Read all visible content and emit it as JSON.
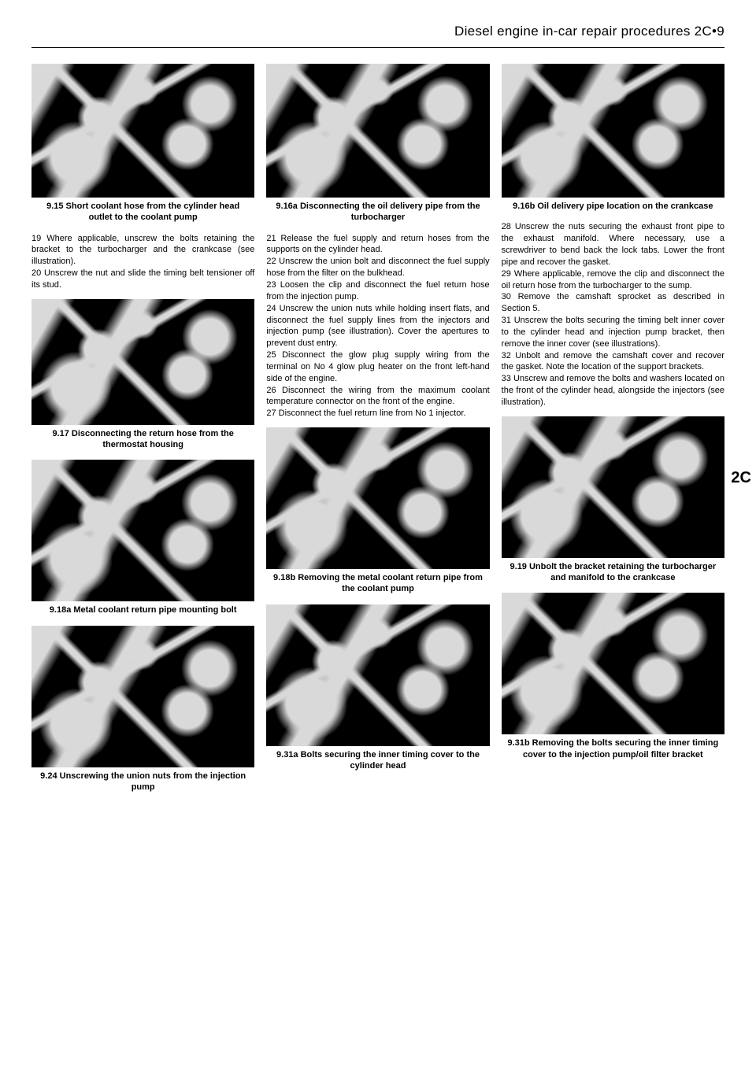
{
  "page": {
    "header": "Diesel engine in-car repair procedures  2C•9",
    "side_tab": "2C"
  },
  "figures": {
    "f9_15": "9.15  Short coolant hose from the cylinder head outlet to the coolant pump",
    "f9_16a": "9.16a  Disconnecting the oil delivery pipe from the turbocharger",
    "f9_16b": "9.16b  Oil delivery pipe location on the crankcase",
    "f9_17": "9.17  Disconnecting the return hose from the thermostat housing",
    "f9_18a": "9.18a  Metal coolant return pipe mounting bolt",
    "f9_18b": "9.18b  Removing the metal coolant return pipe from the coolant pump",
    "f9_19": "9.19  Unbolt the bracket retaining the turbocharger and manifold to the crankcase",
    "f9_24": "9.24  Unscrewing the union nuts from the injection pump",
    "f9_31a": "9.31a  Bolts securing the inner timing cover to the cylinder head",
    "f9_31b": "9.31b  Removing the bolts securing the inner timing cover to the injection pump/oil filter bracket"
  },
  "text": {
    "col1_a": "19 Where applicable, unscrew the bolts retaining the bracket to the turbocharger and the crankcase (see illustration).",
    "col1_b": "20 Unscrew the nut and slide the timing belt tensioner off its stud.",
    "col2_a": "21 Release the fuel supply and return hoses from the supports on the cylinder head.",
    "col2_b": "22 Unscrew the union bolt and disconnect the fuel supply hose from the filter on the bulkhead.",
    "col2_c": "23 Loosen the clip and disconnect the fuel return hose from the injection pump.",
    "col2_d": "24 Unscrew the union nuts while holding insert flats, and disconnect the fuel supply lines from the injectors and injection pump (see illustration). Cover the apertures to prevent dust entry.",
    "col2_e": "25 Disconnect the glow plug supply wiring from the terminal on No 4 glow plug heater on the front left-hand side of the engine.",
    "col2_f": "26 Disconnect the wiring from the maximum coolant temperature connector on the front of the engine.",
    "col2_g": "27 Disconnect the fuel return line from No 1 injector.",
    "col3_a": "28 Unscrew the nuts securing the exhaust front pipe to the exhaust manifold. Where necessary, use a screwdriver to bend back the lock tabs. Lower the front pipe and recover the gasket.",
    "col3_b": "29 Where applicable, remove the clip and disconnect the oil return hose from the turbocharger to the sump.",
    "col3_c": "30 Remove the camshaft sprocket as described in Section 5.",
    "col3_d": "31 Unscrew the bolts securing the timing belt inner cover to the cylinder head and injection pump bracket, then remove the inner cover (see illustrations).",
    "col3_e": "32 Unbolt and remove the camshaft cover and recover the gasket. Note the location of the support brackets.",
    "col3_f": "33 Unscrew and remove the bolts and washers located on the front of the cylinder head, alongside the injectors (see illustration)."
  }
}
